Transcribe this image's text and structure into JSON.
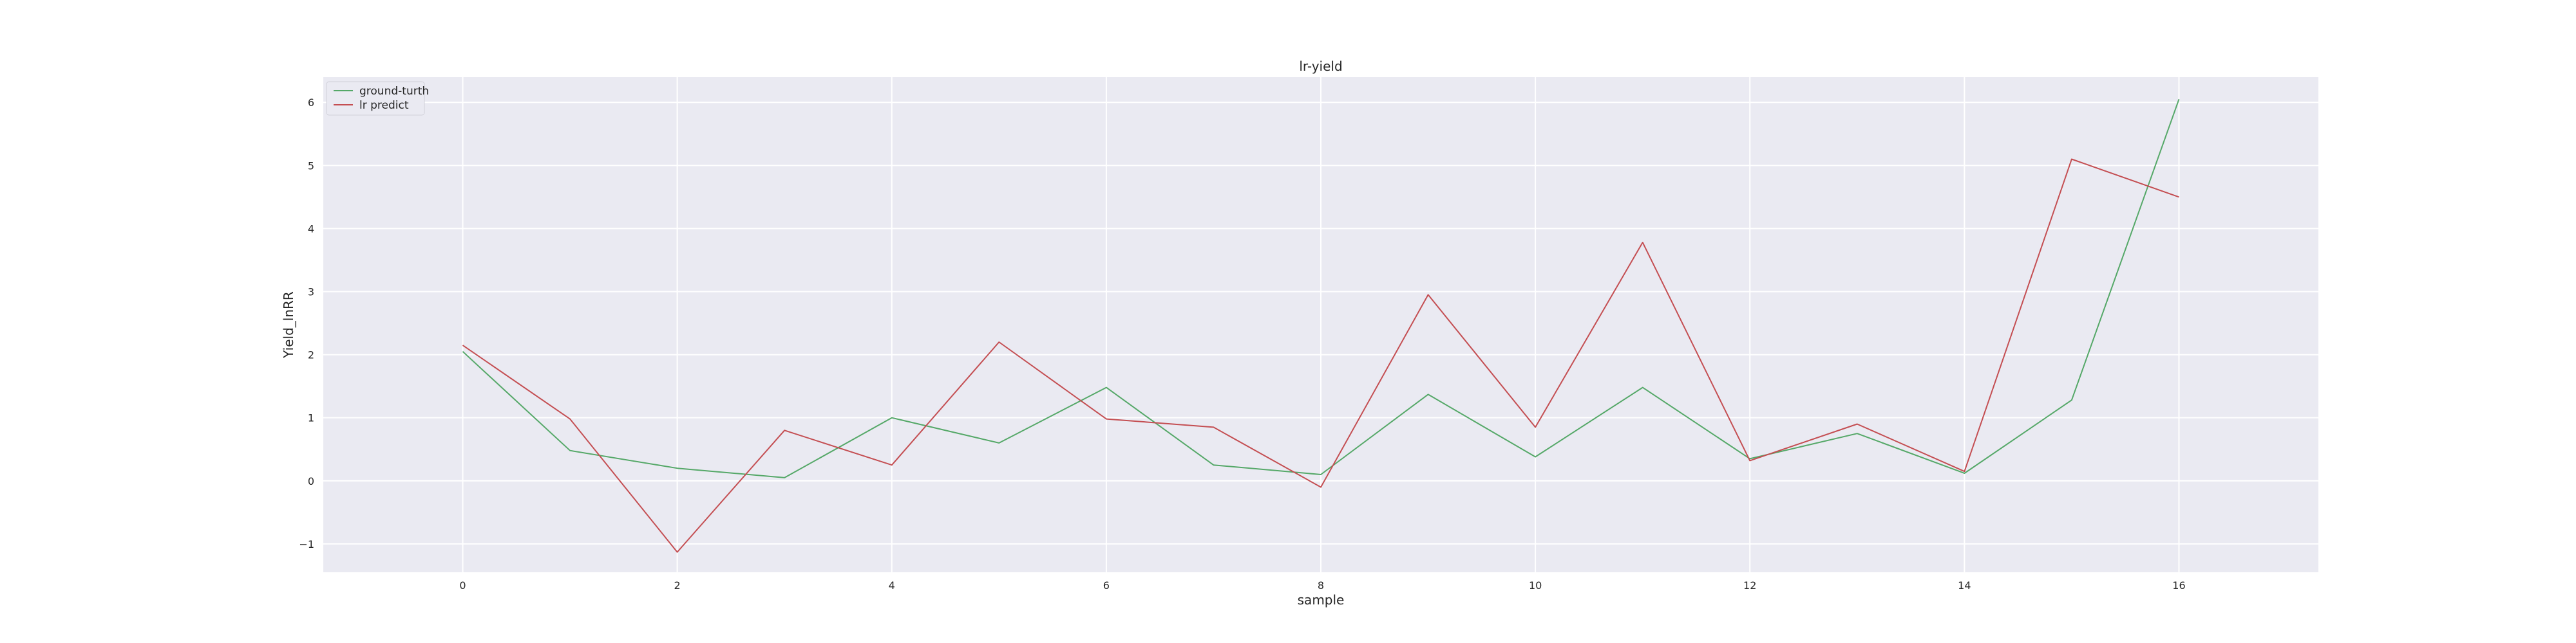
{
  "chart_data": {
    "type": "line",
    "title": "lr-yield",
    "xlabel": "sample",
    "ylabel": "Yield_lnRR",
    "xlim": [
      -1.3,
      17.3
    ],
    "ylim": [
      -1.45,
      6.4
    ],
    "x_ticks": [
      0,
      2,
      4,
      6,
      8,
      10,
      12,
      14,
      16
    ],
    "y_ticks": [
      -1,
      0,
      1,
      2,
      3,
      4,
      5,
      6
    ],
    "y_tick_labels": [
      "−1",
      "0",
      "1",
      "2",
      "3",
      "4",
      "5",
      "6"
    ],
    "grid": true,
    "legend_position": "top-left",
    "x": [
      0,
      1,
      2,
      3,
      4,
      5,
      6,
      7,
      8,
      9,
      10,
      11,
      12,
      13,
      14,
      15,
      16
    ],
    "series": [
      {
        "name": "ground-turth",
        "color": "#55a868",
        "values": [
          2.05,
          0.48,
          0.2,
          0.05,
          1.0,
          0.6,
          1.48,
          0.25,
          0.1,
          1.37,
          0.38,
          1.48,
          0.35,
          0.75,
          0.12,
          1.28,
          6.05
        ]
      },
      {
        "name": "lr predict",
        "color": "#c44e52",
        "values": [
          2.15,
          0.98,
          -1.13,
          0.8,
          0.25,
          2.2,
          0.98,
          0.85,
          -0.1,
          2.95,
          0.85,
          3.78,
          0.32,
          0.9,
          0.15,
          5.1,
          4.5
        ]
      }
    ]
  }
}
